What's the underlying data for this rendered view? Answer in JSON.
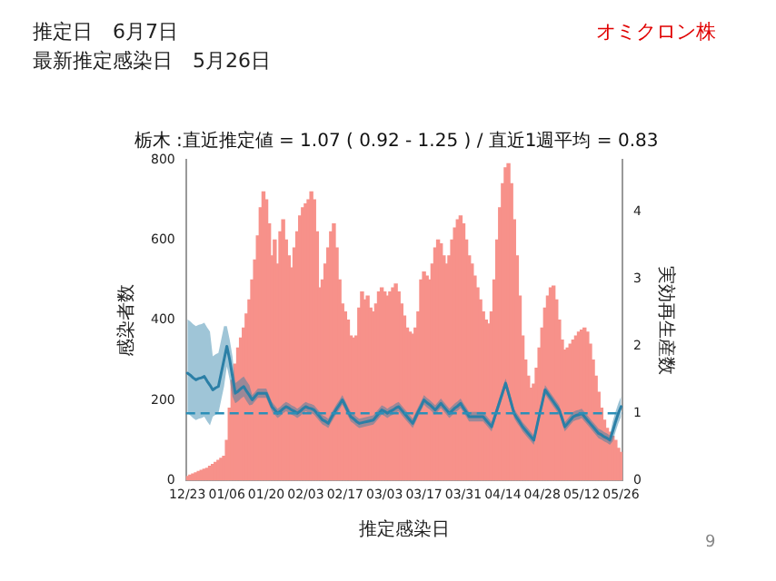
{
  "chart_data": {
    "type": "bar",
    "title": "栃木 :直近推定値 = 1.07 ( 0.92 - 1.25 ) / 直近1週平均 = 0.83",
    "xlabel": "推定感染日",
    "ylabel": "感染者数",
    "y2label": "実効再生産数",
    "annotations": [
      "推定日　6月7日",
      "最新推定感染日　5月26日",
      "オミクロン株",
      "9"
    ],
    "categories": [
      "12/23",
      null,
      null,
      null,
      null,
      null,
      null,
      null,
      null,
      null,
      null,
      null,
      null,
      null,
      "01/06",
      null,
      null,
      null,
      null,
      null,
      null,
      null,
      null,
      null,
      null,
      null,
      null,
      null,
      "01/20",
      null,
      null,
      null,
      null,
      null,
      null,
      null,
      null,
      null,
      null,
      null,
      null,
      null,
      "02/03",
      null,
      null,
      null,
      null,
      null,
      null,
      null,
      null,
      null,
      null,
      null,
      null,
      null,
      "02/17",
      null,
      null,
      null,
      null,
      null,
      null,
      null,
      null,
      null,
      null,
      null,
      null,
      null,
      "03/03",
      null,
      null,
      null,
      null,
      null,
      null,
      null,
      null,
      null,
      null,
      null,
      null,
      null,
      "03/17",
      null,
      null,
      null,
      null,
      null,
      null,
      null,
      null,
      null,
      null,
      null,
      null,
      null,
      "03/31",
      null,
      null,
      null,
      null,
      null,
      null,
      null,
      null,
      null,
      null,
      null,
      null,
      null,
      "04/14",
      null,
      null,
      null,
      null,
      null,
      null,
      null,
      null,
      null,
      null,
      null,
      null,
      null,
      "04/28",
      null,
      null,
      null,
      null,
      null,
      null,
      null,
      null,
      null,
      null,
      null,
      null,
      null,
      "05/12",
      null,
      null,
      null,
      null,
      null,
      null,
      null,
      null,
      null,
      null,
      null,
      null,
      null,
      "05/26"
    ],
    "series": [
      {
        "color": "#f7918a",
        "values": [
          10,
          13,
          16,
          19,
          22,
          25,
          28,
          30,
          35,
          40,
          45,
          50,
          55,
          60,
          100,
          180,
          250,
          290,
          330,
          355,
          380,
          415,
          450,
          500,
          550,
          610,
          680,
          720,
          700,
          640,
          560,
          600,
          540,
          620,
          650,
          600,
          560,
          530,
          580,
          620,
          660,
          680,
          690,
          700,
          720,
          700,
          620,
          480,
          500,
          540,
          580,
          620,
          640,
          580,
          500,
          440,
          420,
          400,
          360,
          355,
          360,
          430,
          470,
          450,
          460,
          430,
          420,
          440,
          470,
          480,
          470,
          460,
          470,
          480,
          490,
          470,
          440,
          410,
          380,
          370,
          365,
          380,
          420,
          500,
          520,
          510,
          500,
          540,
          580,
          600,
          590,
          560,
          540,
          560,
          600,
          630,
          650,
          660,
          640,
          600,
          560,
          540,
          510,
          480,
          450,
          420,
          400,
          390,
          420,
          500,
          600,
          680,
          740,
          780,
          790,
          740,
          650,
          560,
          460,
          360,
          300,
          260,
          230,
          240,
          280,
          330,
          380,
          430,
          460,
          480,
          485,
          450,
          400,
          350,
          325,
          330,
          340,
          350,
          360,
          370,
          375,
          380,
          370,
          340,
          300,
          260,
          220,
          180,
          150,
          130,
          120,
          110,
          100,
          80,
          70
        ]
      },
      {
        "type": "line",
        "axis": "y2",
        "color": "#2b7fa6",
        "values": [
          1.6,
          1.57,
          1.53,
          1.5,
          1.52,
          1.53,
          1.55,
          1.48,
          1.42,
          1.35,
          1.38,
          1.4,
          1.6,
          1.8,
          2.0,
          1.8,
          1.55,
          1.3,
          1.33,
          1.37,
          1.4,
          1.33,
          1.27,
          1.2,
          1.25,
          1.3,
          1.3,
          1.3,
          1.3,
          1.2,
          1.1,
          1.05,
          1.0,
          1.03,
          1.07,
          1.1,
          1.08,
          1.05,
          1.03,
          1.0,
          1.03,
          1.07,
          1.1,
          1.08,
          1.07,
          1.05,
          1.0,
          0.95,
          0.9,
          0.88,
          0.85,
          0.93,
          1.0,
          1.07,
          1.13,
          1.2,
          1.12,
          1.03,
          0.95,
          0.92,
          0.88,
          0.85,
          0.86,
          0.87,
          0.88,
          0.89,
          0.9,
          0.95,
          1.0,
          1.05,
          1.03,
          1.0,
          1.03,
          1.05,
          1.08,
          1.1,
          1.05,
          1.0,
          0.95,
          0.9,
          0.85,
          0.94,
          1.03,
          1.11,
          1.2,
          1.16,
          1.13,
          1.09,
          1.05,
          1.1,
          1.15,
          1.1,
          1.05,
          1.0,
          1.04,
          1.08,
          1.11,
          1.15,
          1.08,
          1.02,
          0.95,
          0.95,
          0.95,
          0.95,
          0.95,
          0.95,
          0.9,
          0.85,
          0.8,
          0.93,
          1.06,
          1.19,
          1.32,
          1.45,
          1.3,
          1.15,
          1.0,
          0.93,
          0.87,
          0.8,
          0.75,
          0.7,
          0.65,
          0.6,
          0.79,
          0.98,
          1.16,
          1.35,
          1.29,
          1.23,
          1.17,
          1.11,
          1.05,
          0.93,
          0.8,
          0.85,
          0.9,
          0.95,
          0.97,
          0.98,
          1.0,
          0.95,
          0.9,
          0.85,
          0.8,
          0.75,
          0.7,
          0.68,
          0.65,
          0.63,
          0.6,
          0.73,
          0.87,
          1.0,
          1.1
        ],
        "lower": [
          1.0,
          0.97,
          0.93,
          0.9,
          0.92,
          0.93,
          0.95,
          0.88,
          0.82,
          0.95,
          0.98,
          1.0,
          1.2,
          1.4,
          1.7,
          1.5,
          1.25,
          1.15,
          1.18,
          1.22,
          1.25,
          1.18,
          1.12,
          1.13,
          1.18,
          1.23,
          1.23,
          1.23,
          1.23,
          1.13,
          1.03,
          0.98,
          0.93,
          0.96,
          1.0,
          1.03,
          1.01,
          0.98,
          0.96,
          0.93,
          0.96,
          1.0,
          1.03,
          1.01,
          1.0,
          0.98,
          0.93,
          0.88,
          0.83,
          0.81,
          0.78,
          0.86,
          0.93,
          1.0,
          1.06,
          1.13,
          1.05,
          0.96,
          0.88,
          0.85,
          0.81,
          0.78,
          0.79,
          0.8,
          0.81,
          0.82,
          0.83,
          0.88,
          0.93,
          0.98,
          0.96,
          0.93,
          0.96,
          0.98,
          1.01,
          1.03,
          0.98,
          0.93,
          0.88,
          0.83,
          0.78,
          0.87,
          0.96,
          1.04,
          1.13,
          1.09,
          1.06,
          1.02,
          0.98,
          1.03,
          1.08,
          1.03,
          0.98,
          0.93,
          0.97,
          1.01,
          1.04,
          1.08,
          1.01,
          0.95,
          0.88,
          0.88,
          0.88,
          0.88,
          0.88,
          0.88,
          0.83,
          0.78,
          0.73,
          0.86,
          0.99,
          1.12,
          1.25,
          1.38,
          1.23,
          1.08,
          0.93,
          0.86,
          0.8,
          0.73,
          0.68,
          0.63,
          0.58,
          0.53,
          0.72,
          0.91,
          1.09,
          1.28,
          1.22,
          1.16,
          1.1,
          1.04,
          0.98,
          0.86,
          0.73,
          0.78,
          0.83,
          0.88,
          0.9,
          0.91,
          0.93,
          0.88,
          0.83,
          0.78,
          0.73,
          0.68,
          0.63,
          0.61,
          0.58,
          0.56,
          0.53,
          0.58,
          0.72,
          0.85,
          0.95
        ],
        "upper": [
          2.4,
          2.37,
          2.33,
          2.3,
          2.32,
          2.33,
          2.35,
          2.28,
          2.22,
          1.85,
          1.88,
          1.9,
          2.1,
          2.3,
          2.3,
          2.1,
          1.85,
          1.45,
          1.48,
          1.52,
          1.55,
          1.48,
          1.42,
          1.27,
          1.32,
          1.37,
          1.37,
          1.37,
          1.37,
          1.27,
          1.17,
          1.12,
          1.07,
          1.1,
          1.14,
          1.17,
          1.15,
          1.12,
          1.1,
          1.07,
          1.1,
          1.14,
          1.17,
          1.15,
          1.14,
          1.12,
          1.07,
          1.02,
          0.97,
          0.95,
          0.92,
          1.0,
          1.07,
          1.14,
          1.2,
          1.27,
          1.19,
          1.1,
          1.02,
          0.99,
          0.95,
          0.92,
          0.93,
          0.94,
          0.95,
          0.96,
          0.97,
          1.02,
          1.07,
          1.12,
          1.1,
          1.07,
          1.1,
          1.12,
          1.15,
          1.17,
          1.12,
          1.07,
          1.02,
          0.97,
          0.92,
          1.01,
          1.1,
          1.18,
          1.27,
          1.23,
          1.2,
          1.16,
          1.12,
          1.17,
          1.22,
          1.17,
          1.12,
          1.07,
          1.11,
          1.15,
          1.18,
          1.22,
          1.15,
          1.09,
          1.02,
          1.02,
          1.02,
          1.02,
          1.02,
          1.02,
          0.97,
          0.92,
          0.87,
          1.0,
          1.13,
          1.26,
          1.39,
          1.52,
          1.37,
          1.22,
          1.07,
          1.0,
          0.94,
          0.87,
          0.82,
          0.77,
          0.72,
          0.67,
          0.86,
          1.05,
          1.23,
          1.42,
          1.36,
          1.3,
          1.24,
          1.18,
          1.12,
          1.0,
          0.87,
          0.92,
          0.97,
          1.02,
          1.04,
          1.05,
          1.07,
          1.02,
          0.97,
          0.92,
          0.87,
          0.82,
          0.77,
          0.75,
          0.72,
          0.7,
          0.67,
          0.88,
          1.02,
          1.15,
          1.25
        ]
      }
    ],
    "ylim": [
      0,
      800
    ],
    "yticks": [
      0,
      200,
      400,
      600,
      800
    ],
    "y2lim": [
      0,
      4.78
    ],
    "y2ticks": [
      0,
      1,
      2,
      3,
      4
    ],
    "ref_lines": [
      {
        "axis": "y2",
        "value": 1,
        "color": "#2b8fb8",
        "line_style": "dashed"
      }
    ],
    "grid": false,
    "legend": false
  }
}
